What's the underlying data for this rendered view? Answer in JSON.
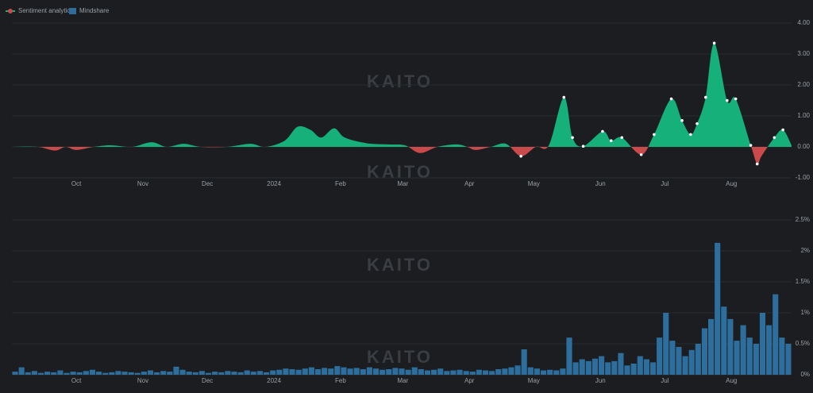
{
  "chart_data": [
    {
      "type": "area",
      "watermark": "KAITO",
      "xlim": [
        0,
        363
      ],
      "xticks": [
        {
          "value": 30,
          "label": "Oct"
        },
        {
          "value": 61,
          "label": "Nov"
        },
        {
          "value": 91,
          "label": "Dec"
        },
        {
          "value": 122,
          "label": "2024"
        },
        {
          "value": 153,
          "label": "Feb"
        },
        {
          "value": 182,
          "label": "Mar"
        },
        {
          "value": 213,
          "label": "Apr"
        },
        {
          "value": 243,
          "label": "May"
        },
        {
          "value": 274,
          "label": "Jun"
        },
        {
          "value": 304,
          "label": "Jul"
        },
        {
          "value": 335,
          "label": "Aug"
        }
      ],
      "ylim": [
        -1,
        4
      ],
      "yticks": [
        {
          "value": -1,
          "label": "-1.00"
        },
        {
          "value": 0,
          "label": "0.00"
        },
        {
          "value": 1,
          "label": "1.00"
        },
        {
          "value": 2,
          "label": "2.00"
        },
        {
          "value": 3,
          "label": "3.00"
        },
        {
          "value": 4,
          "label": "4.00"
        }
      ],
      "grid": true,
      "series": [
        {
          "name": "Sentiment analytics",
          "color": "#16b07a",
          "negative_color": "#c94a4a",
          "x": [
            0,
            12,
            20,
            25,
            30,
            38,
            46,
            56,
            65,
            72,
            80,
            88,
            100,
            111,
            118,
            127,
            133,
            139,
            144,
            150,
            155,
            165,
            175,
            183,
            190,
            198,
            207,
            212,
            216,
            223,
            230,
            237,
            244,
            250,
            257,
            261,
            266,
            275,
            279,
            284,
            293,
            299,
            307,
            312,
            316,
            319,
            323,
            327,
            333,
            337,
            344,
            347,
            349,
            355,
            359,
            363
          ],
          "values": [
            0,
            0,
            -0.12,
            0,
            -0.1,
            0,
            0.05,
            0,
            0.15,
            0,
            0.1,
            0,
            0,
            0.1,
            0,
            0.2,
            0.65,
            0.55,
            0.3,
            0.6,
            0.3,
            0.12,
            0.08,
            0.05,
            -0.2,
            0,
            0.08,
            0,
            -0.1,
            0,
            0.1,
            -0.3,
            0,
            0.05,
            1.6,
            0.3,
            0.02,
            0.5,
            0.2,
            0.3,
            -0.25,
            0.4,
            1.55,
            0.85,
            0.4,
            0.75,
            1.6,
            3.35,
            1.5,
            1.55,
            0.05,
            -0.55,
            -0.3,
            0.3,
            0.55,
            0.05
          ]
        }
      ]
    },
    {
      "type": "bar",
      "watermark": "KAITO",
      "xlim": [
        0,
        363
      ],
      "xticks": [
        {
          "value": 30,
          "label": "Oct"
        },
        {
          "value": 61,
          "label": "Nov"
        },
        {
          "value": 91,
          "label": "Dec"
        },
        {
          "value": 122,
          "label": "2024"
        },
        {
          "value": 153,
          "label": "Feb"
        },
        {
          "value": 182,
          "label": "Mar"
        },
        {
          "value": 213,
          "label": "Apr"
        },
        {
          "value": 243,
          "label": "May"
        },
        {
          "value": 274,
          "label": "Jun"
        },
        {
          "value": 304,
          "label": "Jul"
        },
        {
          "value": 335,
          "label": "Aug"
        }
      ],
      "ylim": [
        0,
        2.5
      ],
      "yticks": [
        {
          "value": 0,
          "label": "0%"
        },
        {
          "value": 0.5,
          "label": "0.5%"
        },
        {
          "value": 1,
          "label": "1%"
        },
        {
          "value": 1.5,
          "label": "1.5%"
        },
        {
          "value": 2,
          "label": "2%"
        },
        {
          "value": 2.5,
          "label": "2.5%"
        }
      ],
      "grid": true,
      "bin_width": 3,
      "series": [
        {
          "name": "Mindshare",
          "color": "#2d6e9c",
          "x": [
            0,
            3,
            6,
            9,
            12,
            15,
            18,
            21,
            24,
            27,
            30,
            33,
            36,
            39,
            42,
            45,
            48,
            51,
            54,
            57,
            60,
            63,
            66,
            69,
            72,
            75,
            78,
            81,
            84,
            87,
            90,
            93,
            96,
            99,
            102,
            105,
            108,
            111,
            114,
            117,
            120,
            123,
            126,
            129,
            132,
            135,
            138,
            141,
            144,
            147,
            150,
            153,
            156,
            159,
            162,
            165,
            168,
            171,
            174,
            177,
            180,
            183,
            186,
            189,
            192,
            195,
            198,
            201,
            204,
            207,
            210,
            213,
            216,
            219,
            222,
            225,
            228,
            231,
            234,
            237,
            240,
            243,
            246,
            249,
            252,
            255,
            258,
            261,
            264,
            267,
            270,
            273,
            276,
            279,
            282,
            285,
            288,
            291,
            294,
            297,
            300,
            303,
            306,
            309,
            312,
            315,
            318,
            321,
            324,
            327,
            330,
            333,
            336,
            339,
            342,
            345,
            348,
            351,
            354,
            357,
            360
          ],
          "values": [
            0.05,
            0.12,
            0.04,
            0.06,
            0.03,
            0.05,
            0.04,
            0.07,
            0.03,
            0.05,
            0.04,
            0.06,
            0.08,
            0.05,
            0.03,
            0.04,
            0.06,
            0.05,
            0.04,
            0.03,
            0.05,
            0.07,
            0.04,
            0.06,
            0.05,
            0.13,
            0.08,
            0.05,
            0.04,
            0.06,
            0.03,
            0.05,
            0.04,
            0.06,
            0.05,
            0.04,
            0.07,
            0.05,
            0.06,
            0.04,
            0.07,
            0.08,
            0.1,
            0.09,
            0.08,
            0.1,
            0.12,
            0.09,
            0.11,
            0.1,
            0.14,
            0.12,
            0.1,
            0.11,
            0.09,
            0.12,
            0.1,
            0.08,
            0.09,
            0.11,
            0.1,
            0.08,
            0.12,
            0.09,
            0.07,
            0.08,
            0.1,
            0.06,
            0.07,
            0.08,
            0.06,
            0.05,
            0.08,
            0.07,
            0.06,
            0.09,
            0.1,
            0.12,
            0.15,
            0.41,
            0.12,
            0.1,
            0.07,
            0.08,
            0.07,
            0.1,
            0.6,
            0.2,
            0.25,
            0.22,
            0.26,
            0.3,
            0.2,
            0.22,
            0.35,
            0.15,
            0.18,
            0.3,
            0.25,
            0.2,
            0.6,
            1.0,
            0.55,
            0.45,
            0.3,
            0.4,
            0.5,
            0.75,
            0.9,
            2.13,
            1.1,
            0.9,
            0.55,
            0.8,
            0.6,
            0.5,
            1.0,
            0.8,
            1.3,
            0.6,
            0.5
          ]
        }
      ]
    }
  ]
}
